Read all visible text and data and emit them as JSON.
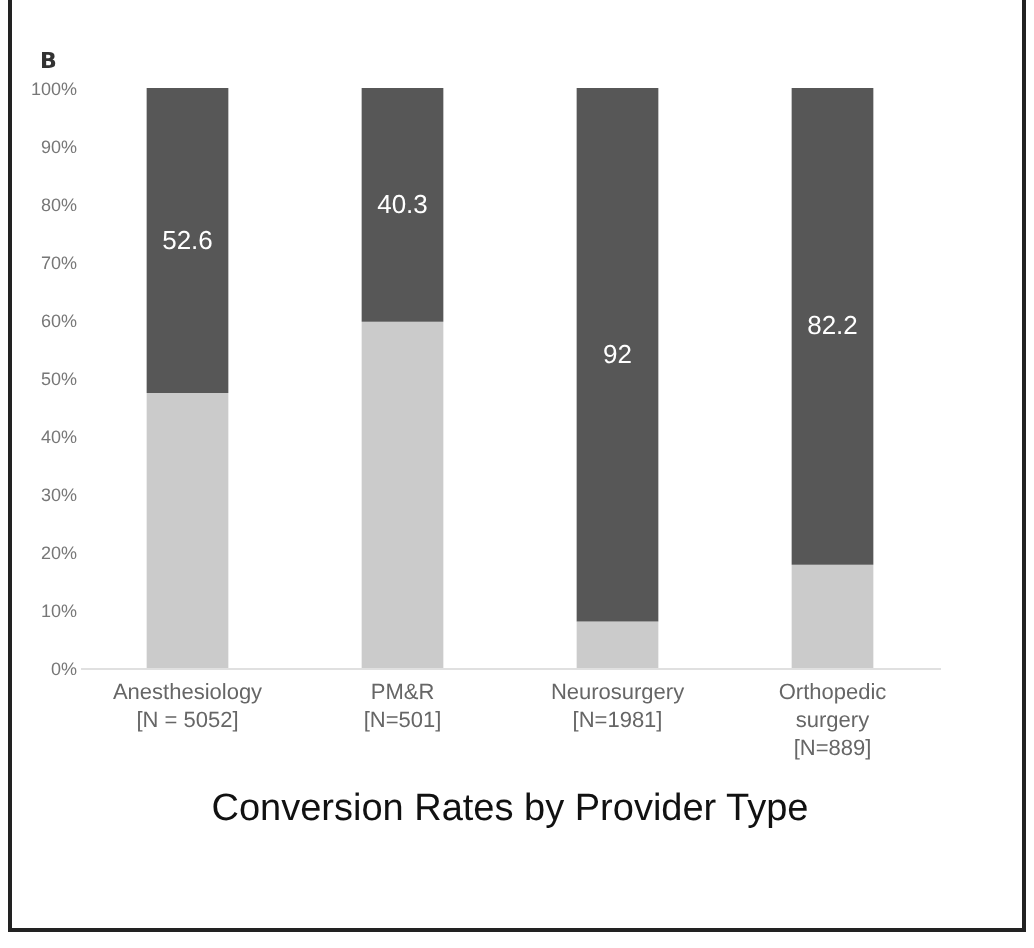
{
  "chart_data": {
    "type": "bar",
    "title": "Conversion Rates by Provider Type",
    "annotations": [
      "B"
    ],
    "categories": [
      "Anesthesiology\n[N = 5052]",
      "PM&R\n[N=501]",
      "Neurosurgery\n[N=1981]",
      "Orthopedic\nsurgery\n[N=889]"
    ],
    "stacked": true,
    "series": [
      {
        "color": "#cbcbcb",
        "values": [
          47.4,
          59.7,
          8,
          17.8
        ]
      },
      {
        "color": "#575757",
        "values": [
          52.6,
          40.3,
          92,
          82.2
        ],
        "value_labels": [
          "52.6",
          "40.3",
          "92",
          "82.2"
        ]
      }
    ],
    "ylim": [
      0,
      100
    ],
    "yticks": [
      {
        "value": 0,
        "label": "0%"
      },
      {
        "value": 10,
        "label": "10%"
      },
      {
        "value": 20,
        "label": "20%"
      },
      {
        "value": 30,
        "label": "30%"
      },
      {
        "value": 40,
        "label": "40%"
      },
      {
        "value": 50,
        "label": "50%"
      },
      {
        "value": 60,
        "label": "60%"
      },
      {
        "value": 70,
        "label": "70%"
      },
      {
        "value": 80,
        "label": "80%"
      },
      {
        "value": 90,
        "label": "90%"
      },
      {
        "value": 100,
        "label": "100%"
      }
    ],
    "grid": false,
    "legend": false
  }
}
